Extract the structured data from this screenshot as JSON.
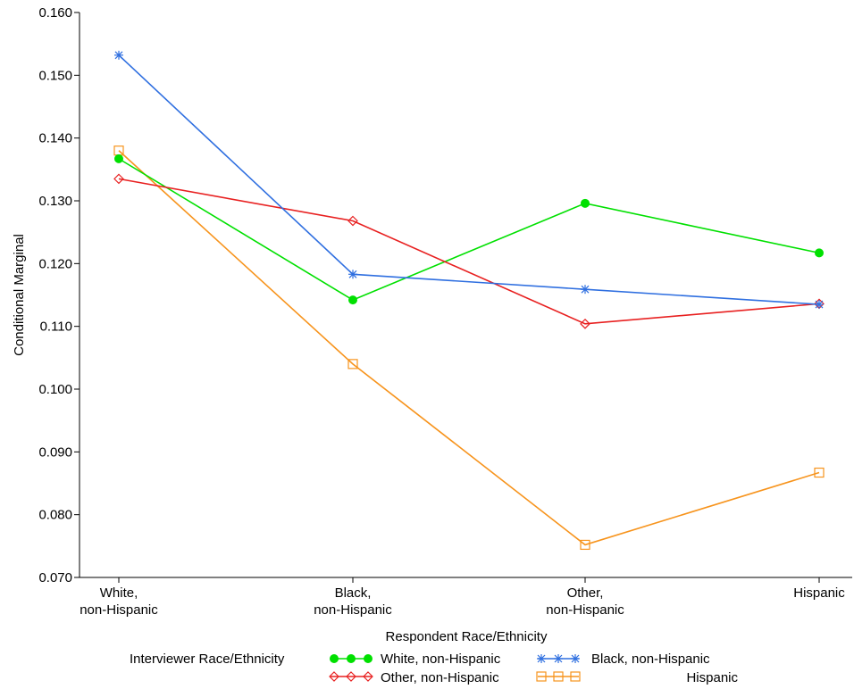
{
  "chart_data": {
    "type": "line",
    "title": "",
    "xlabel": "Respondent Race/Ethnicity",
    "ylabel": "Conditional Marginal",
    "ylim": [
      0.07,
      0.16
    ],
    "yticks": [
      "0.070",
      "0.080",
      "0.090",
      "0.100",
      "0.110",
      "0.120",
      "0.130",
      "0.140",
      "0.150",
      "0.160"
    ],
    "ytick_values": [
      0.07,
      0.08,
      0.09,
      0.1,
      0.11,
      0.12,
      0.13,
      0.14,
      0.15,
      0.16
    ],
    "categories": [
      [
        "White,",
        "non-Hispanic"
      ],
      [
        "Black,",
        "non-Hispanic"
      ],
      [
        "Other,",
        "non-Hispanic"
      ],
      [
        "Hispanic"
      ]
    ],
    "grid": false,
    "legend": {
      "title": "Interviewer Race/Ethnicity",
      "placement": "bottom"
    },
    "series": [
      {
        "name": "White, non-Hispanic",
        "color": "#00e000",
        "marker": "filled-circle",
        "values": [
          0.1367,
          0.1142,
          0.1296,
          0.1217
        ]
      },
      {
        "name": "Black, non-Hispanic",
        "color": "#2f6fe0",
        "marker": "star",
        "values": [
          0.1532,
          0.1183,
          0.1159,
          0.1135
        ]
      },
      {
        "name": "Other, non-Hispanic",
        "color": "#e82020",
        "marker": "diamond",
        "values": [
          0.1335,
          0.1268,
          0.1104,
          0.1136
        ]
      },
      {
        "name": "Hispanic",
        "color": "#f7941d",
        "marker": "square",
        "values": [
          0.138,
          0.104,
          0.0752,
          0.0867
        ]
      }
    ]
  }
}
